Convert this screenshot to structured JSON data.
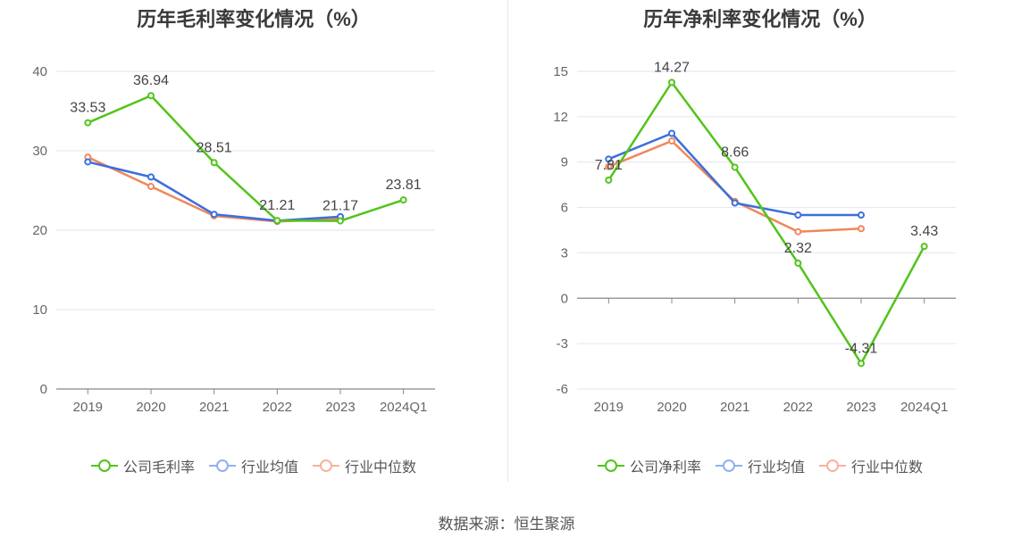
{
  "source_text": "数据来源：恒生聚源",
  "chart_data": [
    {
      "type": "line",
      "title": "历年毛利率变化情况（%）",
      "categories": [
        "2019",
        "2020",
        "2021",
        "2022",
        "2023",
        "2024Q1"
      ],
      "ylim": [
        0,
        40
      ],
      "yticks": [
        0,
        10,
        20,
        30,
        40
      ],
      "grid": true,
      "legend_position": "bottom",
      "series": [
        {
          "name": "公司毛利率",
          "color": "#52c41a",
          "values": [
            33.53,
            36.94,
            28.51,
            21.21,
            21.17,
            23.81
          ],
          "labels": [
            "33.53",
            "36.94",
            "28.51",
            "21.21",
            "21.17",
            "23.81"
          ]
        },
        {
          "name": "行业均值",
          "color": "#3b6fdc",
          "values": [
            28.6,
            26.7,
            22.0,
            21.2,
            21.7,
            null
          ]
        },
        {
          "name": "行业中位数",
          "color": "#f0875a",
          "values": [
            29.2,
            25.5,
            21.8,
            21.1,
            21.4,
            null
          ]
        }
      ]
    },
    {
      "type": "line",
      "title": "历年净利率变化情况（%）",
      "categories": [
        "2019",
        "2020",
        "2021",
        "2022",
        "2023",
        "2024Q1"
      ],
      "ylim": [
        -6,
        15
      ],
      "yticks": [
        -6,
        -3,
        0,
        3,
        6,
        9,
        12,
        15
      ],
      "grid": true,
      "legend_position": "bottom",
      "series": [
        {
          "name": "公司净利率",
          "color": "#52c41a",
          "values": [
            7.81,
            14.27,
            8.66,
            2.32,
            -4.31,
            3.43
          ],
          "labels": [
            "7.81",
            "14.27",
            "8.66",
            "2.32",
            "-4.31",
            "3.43"
          ]
        },
        {
          "name": "行业均值",
          "color": "#3b6fdc",
          "values": [
            9.2,
            10.9,
            6.3,
            5.5,
            5.5,
            null
          ]
        },
        {
          "name": "行业中位数",
          "color": "#f0875a",
          "values": [
            8.7,
            10.4,
            6.4,
            4.4,
            4.6,
            null
          ]
        }
      ]
    }
  ],
  "legend_colors": {
    "company": "#52c41a",
    "avg": "#8fb0f0",
    "median": "#f5b39b"
  }
}
